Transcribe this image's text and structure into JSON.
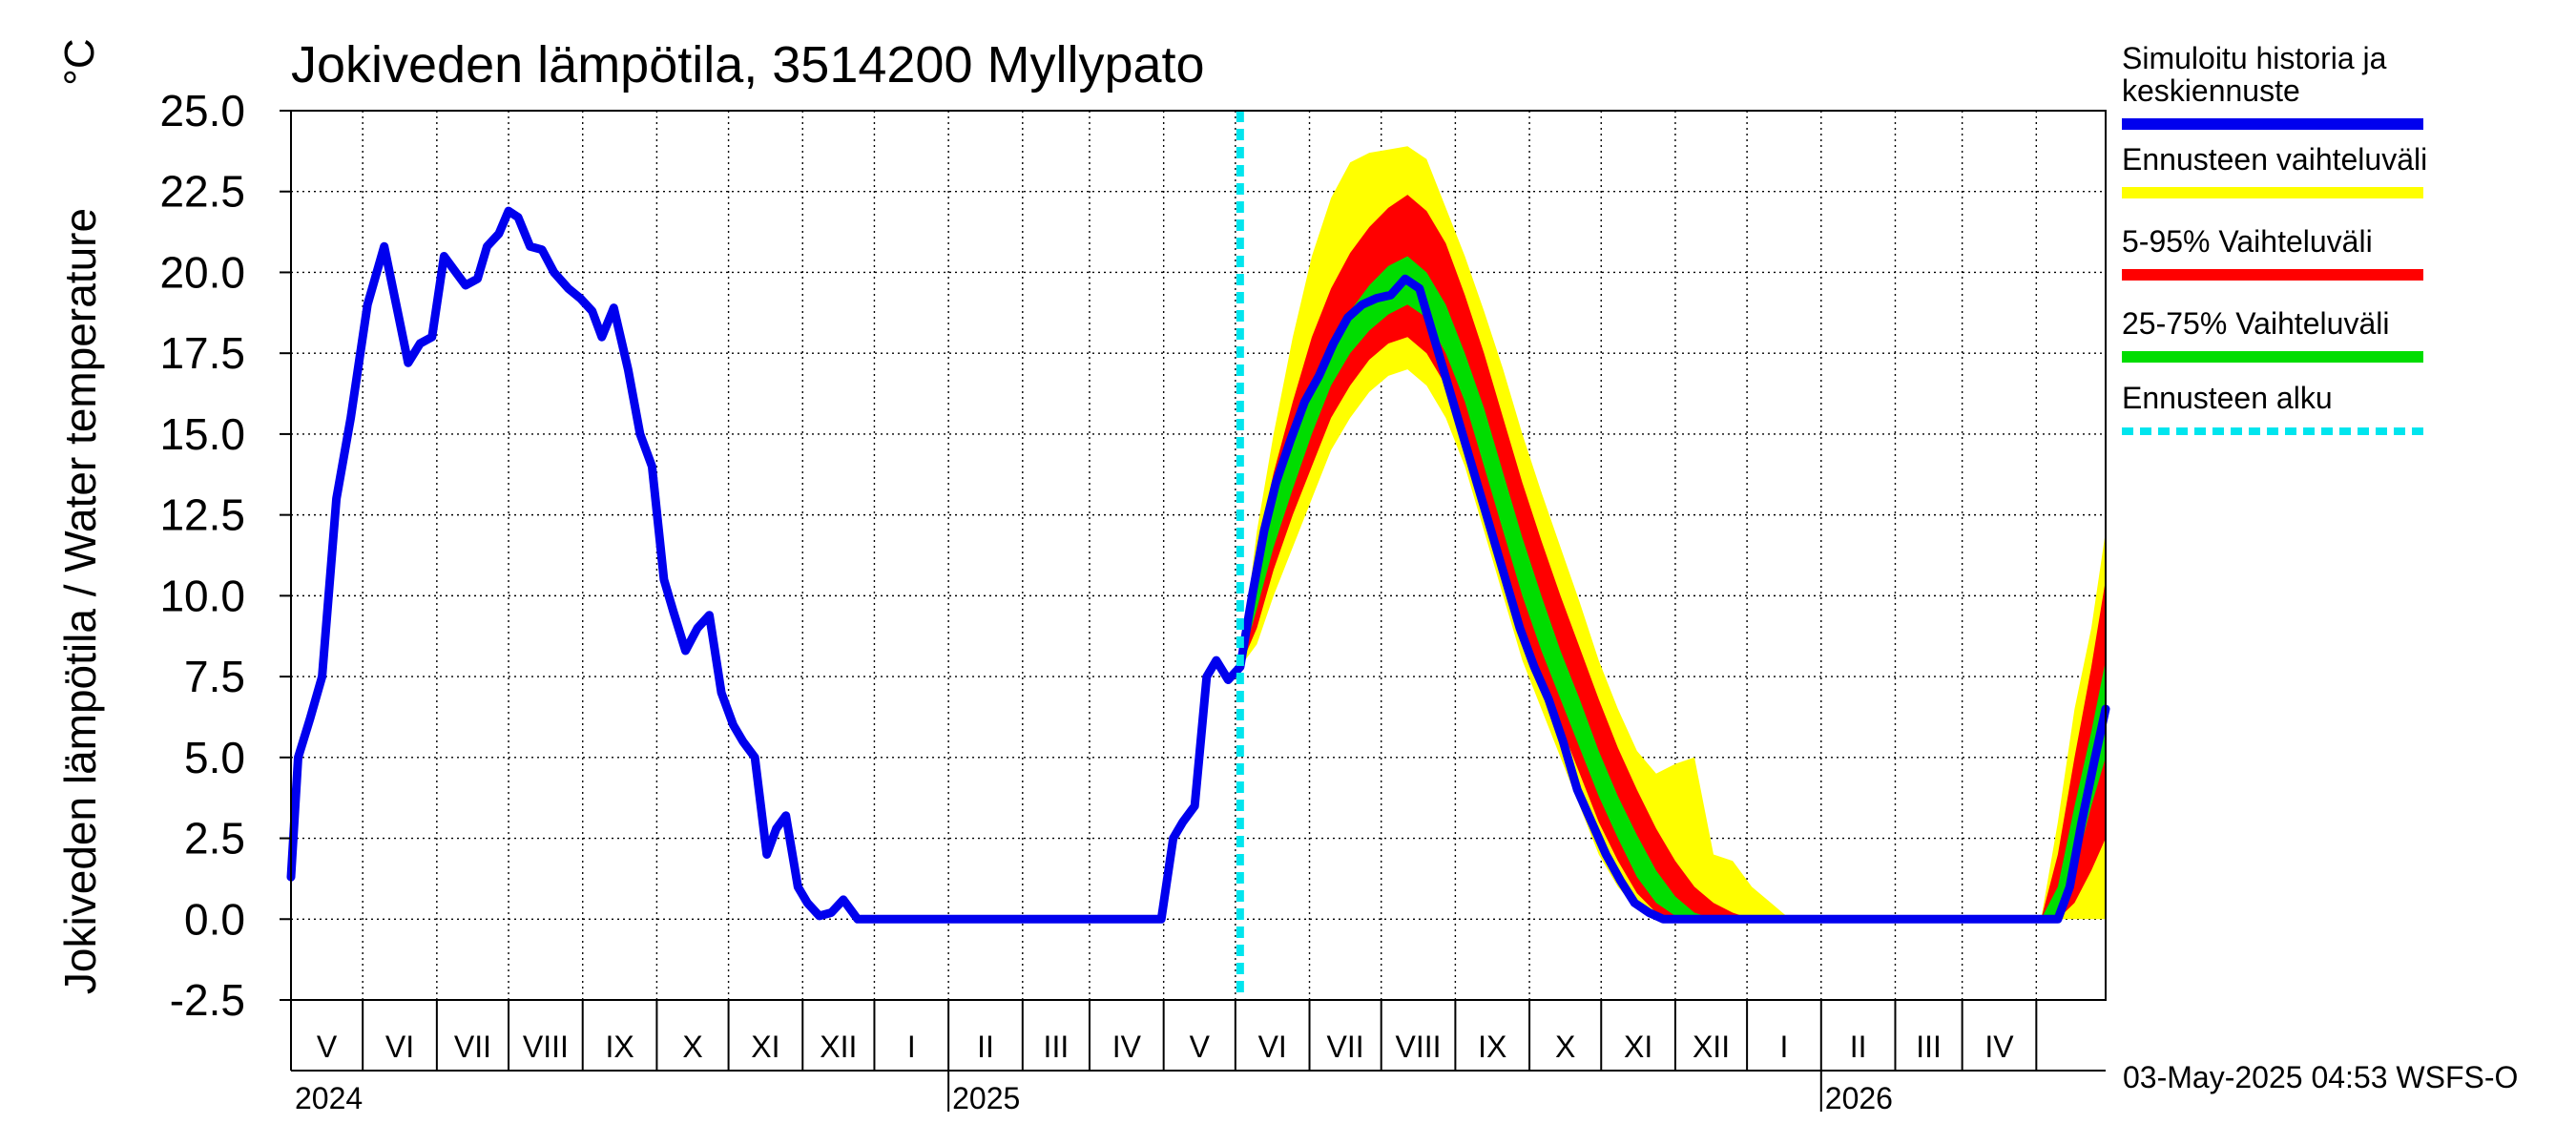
{
  "chart_data": {
    "type": "line",
    "title": "Jokiveden lämpötila, 3514200 Myllypato",
    "ylabel": "Jokiveden lämpötila / Water temperature",
    "unit": "°C",
    "ylim": [
      -2.5,
      25.0
    ],
    "yticks": [
      "-2.5",
      "0.0",
      "2.5",
      "5.0",
      "7.5",
      "10.0",
      "12.5",
      "15.0",
      "17.5",
      "20.0",
      "22.5",
      "25.0"
    ],
    "xlim": [
      "2024-04-01",
      "2026-04-30"
    ],
    "grid": true,
    "legend_position": "right",
    "months": [
      "V",
      "VI",
      "VII",
      "VIII",
      "IX",
      "X",
      "XI",
      "XII",
      "I",
      "II",
      "III",
      "IV",
      "V",
      "VI",
      "VII",
      "VIII",
      "IX",
      "X",
      "XI",
      "XII",
      "I",
      "II",
      "III",
      "IV"
    ],
    "years": [
      "2024",
      "2025",
      "2026"
    ],
    "forecast_start": "2025-05-03",
    "colors": {
      "history": "#0000ee",
      "range_full": "#ffff00",
      "range_5_95": "#ff0000",
      "range_25_75": "#00dd00",
      "forecast_line": "#00e5ee"
    },
    "legend": [
      {
        "label": "Simuloitu historia ja keskiennuste",
        "lines": [
          "Simuloitu historia ja",
          "keskiennuste"
        ],
        "color": "#0000ee",
        "style": "solid"
      },
      {
        "label": "Ennusteen vaihteluväli",
        "lines": [
          "Ennusteen vaihteluväli"
        ],
        "color": "#ffff00",
        "style": "solid"
      },
      {
        "label": "5-95% Vaihteluväli",
        "lines": [
          "5-95% Vaihteluväli"
        ],
        "color": "#ff0000",
        "style": "solid"
      },
      {
        "label": "25-75% Vaihteluväli",
        "lines": [
          "25-75% Vaihteluväli"
        ],
        "color": "#00dd00",
        "style": "solid"
      },
      {
        "label": "Ennusteen alku",
        "lines": [
          "Ennusteen alku"
        ],
        "color": "#00e5ee",
        "style": "dashed"
      }
    ],
    "history": {
      "x": [
        "2024-04-01",
        "2024-04-04",
        "2024-04-09",
        "2024-04-14",
        "2024-04-20",
        "2024-04-26",
        "2024-05-03",
        "2024-05-10",
        "2024-05-15",
        "2024-05-20",
        "2024-05-25",
        "2024-05-30",
        "2024-06-04",
        "2024-06-09",
        "2024-06-13",
        "2024-06-18",
        "2024-06-22",
        "2024-06-27",
        "2024-07-01",
        "2024-07-05",
        "2024-07-10",
        "2024-07-15",
        "2024-07-20",
        "2024-07-26",
        "2024-07-31",
        "2024-08-05",
        "2024-08-09",
        "2024-08-14",
        "2024-08-20",
        "2024-08-25",
        "2024-08-30",
        "2024-09-04",
        "2024-09-08",
        "2024-09-13",
        "2024-09-18",
        "2024-09-23",
        "2024-09-28",
        "2024-10-03",
        "2024-10-07",
        "2024-10-12",
        "2024-10-17",
        "2024-10-21",
        "2024-10-25",
        "2024-10-30",
        "2024-11-03",
        "2024-11-08",
        "2024-11-13",
        "2024-11-18",
        "2024-11-24",
        "2024-11-28",
        "2024-12-03",
        "2024-12-08",
        "2024-12-13",
        "2024-12-19",
        "2024-12-24",
        "2024-12-28",
        "2024-12-31",
        "2025-01-31",
        "2025-02-28",
        "2025-03-31",
        "2025-04-05",
        "2025-04-09",
        "2025-04-14",
        "2025-04-19",
        "2025-04-23",
        "2025-04-28",
        "2025-05-03",
        "2025-05-08",
        "2025-05-13",
        "2025-05-18",
        "2025-05-24",
        "2025-05-30",
        "2025-06-05",
        "2025-06-11",
        "2025-06-17",
        "2025-06-23",
        "2025-06-29",
        "2025-07-05",
        "2025-07-11",
        "2025-07-17",
        "2025-07-23",
        "2025-07-29",
        "2025-08-04",
        "2025-08-10",
        "2025-08-16",
        "2025-08-22",
        "2025-08-28",
        "2025-09-03",
        "2025-09-09",
        "2025-09-15",
        "2025-09-21",
        "2025-09-27",
        "2025-10-03",
        "2025-10-09",
        "2025-10-15",
        "2025-10-21",
        "2025-10-27",
        "2025-11-02",
        "2025-11-08",
        "2025-11-14",
        "2025-11-20",
        "2025-11-25",
        "2025-11-30",
        "2025-12-31",
        "2026-01-31",
        "2026-02-28",
        "2026-03-31",
        "2026-04-05",
        "2026-04-10",
        "2026-04-15",
        "2026-04-20",
        "2026-04-25",
        "2026-04-30"
      ],
      "y": [
        1.3,
        5.0,
        6.2,
        7.5,
        13.0,
        15.5,
        19.0,
        20.8,
        19.0,
        17.2,
        17.8,
        18.0,
        20.5,
        20.0,
        19.6,
        19.8,
        20.8,
        21.2,
        21.9,
        21.7,
        20.8,
        20.7,
        20.0,
        19.5,
        19.2,
        18.8,
        18.0,
        18.9,
        17.0,
        15.0,
        14.0,
        10.5,
        9.5,
        8.3,
        9.0,
        9.4,
        7.0,
        6.0,
        5.5,
        5.0,
        2.0,
        2.8,
        3.2,
        1.0,
        0.5,
        0.1,
        0.2,
        0.6,
        0.0,
        0.0,
        0.0,
        0.0,
        0.0,
        0.0,
        0.0,
        0.0,
        0.0,
        0.0,
        0.0,
        0.0,
        2.5,
        3.0,
        3.5,
        7.5,
        8.0,
        7.4,
        7.8,
        10.0,
        12.0,
        13.5,
        14.8,
        16.0,
        16.8,
        17.8,
        18.6,
        19.0,
        19.2,
        19.3,
        19.8,
        19.5,
        18.0,
        16.5,
        15.0,
        13.5,
        12.0,
        10.5,
        9.0,
        7.8,
        6.8,
        5.5,
        4.0,
        3.0,
        2.0,
        1.2,
        0.5,
        0.2,
        0.0,
        0.0,
        0.0,
        0.0,
        0.0,
        0.0,
        0.0,
        0.0,
        0.0,
        0.0,
        0.0,
        0.0,
        0.0,
        1.0,
        3.0,
        4.8,
        6.5
      ]
    },
    "forecast_bands": {
      "x": [
        "2025-05-03",
        "2025-05-10",
        "2025-05-17",
        "2025-05-25",
        "2025-06-02",
        "2025-06-10",
        "2025-06-18",
        "2025-06-26",
        "2025-07-04",
        "2025-07-12",
        "2025-07-20",
        "2025-07-28",
        "2025-08-05",
        "2025-08-13",
        "2025-08-21",
        "2025-08-29",
        "2025-09-06",
        "2025-09-14",
        "2025-09-22",
        "2025-09-30",
        "2025-10-08",
        "2025-10-16",
        "2025-10-24",
        "2025-11-01",
        "2025-11-09",
        "2025-11-17",
        "2025-11-25",
        "2025-12-03",
        "2025-12-11",
        "2025-12-19",
        "2025-12-27",
        "2026-01-04",
        "2026-01-31",
        "2026-02-28",
        "2026-03-31",
        "2026-04-03",
        "2026-04-10",
        "2026-04-17",
        "2026-04-24",
        "2026-04-30"
      ],
      "full_low": [
        7.8,
        8.5,
        10.0,
        11.5,
        13.0,
        14.5,
        15.5,
        16.3,
        16.8,
        17.0,
        16.5,
        15.5,
        14.0,
        12.0,
        10.0,
        8.0,
        6.5,
        5.0,
        3.5,
        2.0,
        1.0,
        0.3,
        0.0,
        0.0,
        0.0,
        0.0,
        0.0,
        0.0,
        0.0,
        0.0,
        0.0,
        0.0,
        0.0,
        0.0,
        0.0,
        0.0,
        0.0,
        0.0,
        0.0,
        0.0
      ],
      "p5": [
        7.8,
        9.0,
        10.8,
        12.5,
        14.0,
        15.5,
        16.5,
        17.3,
        17.8,
        18.0,
        17.5,
        16.5,
        15.0,
        13.0,
        11.0,
        9.0,
        7.5,
        6.0,
        4.5,
        3.0,
        1.8,
        0.8,
        0.2,
        0.0,
        0.0,
        0.0,
        0.0,
        0.0,
        0.0,
        0.0,
        0.0,
        0.0,
        0.0,
        0.0,
        0.0,
        0.0,
        0.0,
        0.5,
        1.5,
        2.5
      ],
      "p25": [
        7.8,
        9.6,
        11.5,
        13.3,
        15.0,
        16.5,
        17.5,
        18.2,
        18.7,
        19.0,
        18.6,
        17.5,
        16.0,
        14.0,
        12.0,
        10.0,
        8.3,
        6.8,
        5.3,
        3.8,
        2.5,
        1.3,
        0.5,
        0.1,
        0.0,
        0.0,
        0.0,
        0.0,
        0.0,
        0.0,
        0.0,
        0.0,
        0.0,
        0.0,
        0.0,
        0.0,
        0.0,
        1.5,
        3.5,
        5.0
      ],
      "p75": [
        7.8,
        10.6,
        12.8,
        14.8,
        16.5,
        17.8,
        18.8,
        19.6,
        20.2,
        20.5,
        20.0,
        19.0,
        17.5,
        15.8,
        13.8,
        11.8,
        10.0,
        8.3,
        6.8,
        5.2,
        3.8,
        2.6,
        1.5,
        0.7,
        0.2,
        0.0,
        0.0,
        0.0,
        0.0,
        0.0,
        0.0,
        0.0,
        0.0,
        0.0,
        0.0,
        0.0,
        1.0,
        3.5,
        5.8,
        8.0
      ],
      "p95": [
        7.8,
        11.4,
        13.8,
        16.0,
        18.0,
        19.5,
        20.6,
        21.4,
        22.0,
        22.4,
        21.9,
        20.9,
        19.3,
        17.5,
        15.5,
        13.5,
        11.7,
        10.0,
        8.4,
        6.8,
        5.3,
        4.0,
        2.8,
        1.8,
        1.0,
        0.5,
        0.2,
        0.0,
        0.0,
        0.0,
        0.0,
        0.0,
        0.0,
        0.0,
        0.0,
        0.0,
        2.0,
        5.0,
        7.8,
        10.5
      ],
      "full_high": [
        7.8,
        12.0,
        15.0,
        18.0,
        20.5,
        22.3,
        23.4,
        23.7,
        23.8,
        23.9,
        23.5,
        22.0,
        20.5,
        18.8,
        17.0,
        15.0,
        13.2,
        11.5,
        9.8,
        8.0,
        6.5,
        5.2,
        4.5,
        4.8,
        5.0,
        2.0,
        1.8,
        1.0,
        0.5,
        0.0,
        0.0,
        0.0,
        0.0,
        0.0,
        0.0,
        0.0,
        3.0,
        6.5,
        9.0,
        12.0
      ]
    }
  },
  "footer": {
    "timestamp": "03-May-2025 04:53 WSFS-O"
  }
}
